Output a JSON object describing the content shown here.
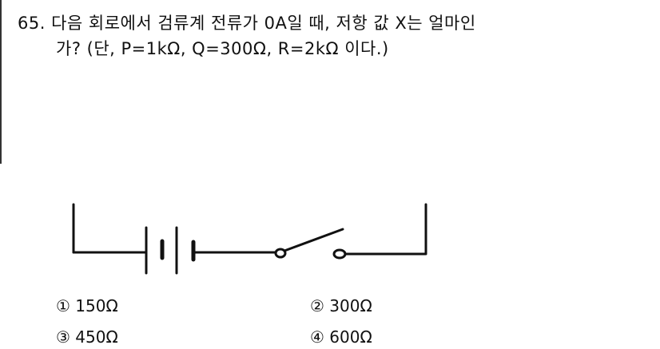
{
  "question": {
    "number": "65.",
    "line1": "다음 회로에서 검류계 전류가 0A일 때, 저항 값 X는 얼마인",
    "line2": "가? (단, P=1kΩ, Q=300Ω, R=2kΩ 이다.)"
  },
  "options": [
    {
      "marker": "①",
      "text": "150Ω"
    },
    {
      "marker": "②",
      "text": "300Ω"
    },
    {
      "marker": "③",
      "text": "450Ω"
    },
    {
      "marker": "④",
      "text": "600Ω"
    }
  ]
}
